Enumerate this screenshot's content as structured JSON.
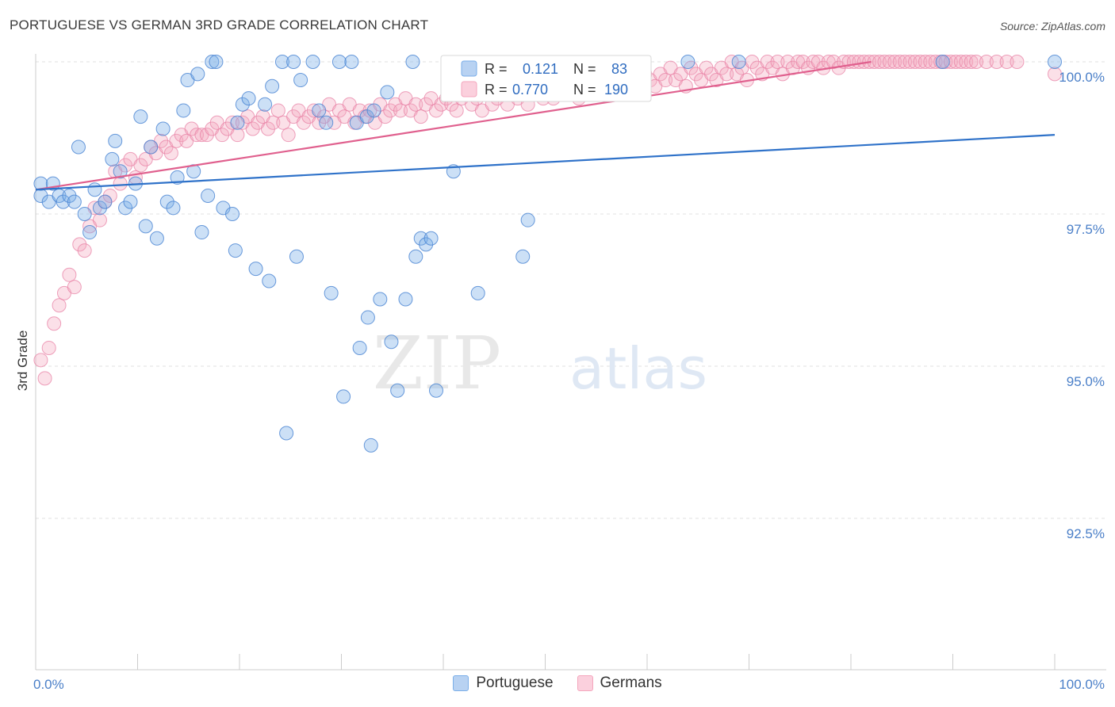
{
  "header": {
    "title": "PORTUGUESE VS GERMAN 3RD GRADE CORRELATION CHART",
    "source": "Source: ZipAtlas.com"
  },
  "watermark": {
    "zip": "ZIP",
    "atlas": "atlas"
  },
  "stats_box": {
    "rows": [
      {
        "r_label": "R =",
        "r_value": "0.121",
        "n_label": "N =",
        "n_value": "83",
        "color": "#7aaee8"
      },
      {
        "r_label": "R =",
        "r_value": "0.770",
        "n_label": "N =",
        "n_value": "190",
        "color": "#f4a6bd"
      }
    ]
  },
  "legend": {
    "items": [
      "Portuguese",
      "Germans"
    ]
  },
  "chart_data": {
    "type": "scatter",
    "title": "PORTUGUESE VS GERMAN 3RD GRADE CORRELATION CHART",
    "xlabel": "",
    "ylabel": "3rd Grade",
    "xlim": [
      0,
      100
    ],
    "ylim": [
      90.5,
      100.3
    ],
    "x_tick_labels": [
      "0.0%",
      "100.0%"
    ],
    "y_ticks": [
      92.5,
      95.0,
      97.5,
      100.0
    ],
    "y_tick_labels": [
      "92.5%",
      "95.0%",
      "97.5%",
      "100.0%"
    ],
    "grid": "horizontal dashed",
    "legend_position": "bottom-center",
    "series": [
      {
        "name": "Portuguese",
        "color": "#7aaee8",
        "line_color": "#2f72c9",
        "trend": [
          [
            0,
            97.9
          ],
          [
            100,
            98.8
          ]
        ],
        "points": [
          [
            0.5,
            97.8
          ],
          [
            0.5,
            98.0
          ],
          [
            1.3,
            97.7
          ],
          [
            1.7,
            98.0
          ],
          [
            2.3,
            97.8
          ],
          [
            2.7,
            97.7
          ],
          [
            3.3,
            97.8
          ],
          [
            3.8,
            97.7
          ],
          [
            4.2,
            98.6
          ],
          [
            4.8,
            97.5
          ],
          [
            5.3,
            97.2
          ],
          [
            5.8,
            97.9
          ],
          [
            6.3,
            97.6
          ],
          [
            6.8,
            97.7
          ],
          [
            7.5,
            98.4
          ],
          [
            7.8,
            98.7
          ],
          [
            8.3,
            98.2
          ],
          [
            8.8,
            97.6
          ],
          [
            9.3,
            97.7
          ],
          [
            9.8,
            98.0
          ],
          [
            10.3,
            99.1
          ],
          [
            10.8,
            97.3
          ],
          [
            11.3,
            98.6
          ],
          [
            11.9,
            97.1
          ],
          [
            12.5,
            98.9
          ],
          [
            12.9,
            97.7
          ],
          [
            13.5,
            97.6
          ],
          [
            13.9,
            98.1
          ],
          [
            14.5,
            99.2
          ],
          [
            14.9,
            99.7
          ],
          [
            15.5,
            98.2
          ],
          [
            15.9,
            99.8
          ],
          [
            16.3,
            97.2
          ],
          [
            16.9,
            97.8
          ],
          [
            17.3,
            100.0
          ],
          [
            17.7,
            100.0
          ],
          [
            18.4,
            97.6
          ],
          [
            19.3,
            97.5
          ],
          [
            19.6,
            96.9
          ],
          [
            19.8,
            99.0
          ],
          [
            20.3,
            99.3
          ],
          [
            20.9,
            99.4
          ],
          [
            21.6,
            96.6
          ],
          [
            22.5,
            99.3
          ],
          [
            22.9,
            96.4
          ],
          [
            23.2,
            99.6
          ],
          [
            24.2,
            100.0
          ],
          [
            25.3,
            100.0
          ],
          [
            25.6,
            96.8
          ],
          [
            26.0,
            99.7
          ],
          [
            27.2,
            100.0
          ],
          [
            27.8,
            99.2
          ],
          [
            28.5,
            99.0
          ],
          [
            29.0,
            96.2
          ],
          [
            29.8,
            100.0
          ],
          [
            31.0,
            100.0
          ],
          [
            31.5,
            99.0
          ],
          [
            31.8,
            95.3
          ],
          [
            32.5,
            99.1
          ],
          [
            32.6,
            95.8
          ],
          [
            33.2,
            99.2
          ],
          [
            33.8,
            96.1
          ],
          [
            34.5,
            99.5
          ],
          [
            34.9,
            95.4
          ],
          [
            35.5,
            94.6
          ],
          [
            36.3,
            96.1
          ],
          [
            37.0,
            100.0
          ],
          [
            37.3,
            96.8
          ],
          [
            37.8,
            97.1
          ],
          [
            38.3,
            97.0
          ],
          [
            38.8,
            97.1
          ],
          [
            39.3,
            94.6
          ],
          [
            41.0,
            98.2
          ],
          [
            43.4,
            96.2
          ],
          [
            47.8,
            96.8
          ],
          [
            48.3,
            97.4
          ],
          [
            24.6,
            93.9
          ],
          [
            32.9,
            93.7
          ],
          [
            30.2,
            94.5
          ],
          [
            64.0,
            100.0
          ],
          [
            69.0,
            100.0
          ],
          [
            89.0,
            100.0
          ],
          [
            100.0,
            100.0
          ]
        ]
      },
      {
        "name": "Germans",
        "color": "#f4a6bd",
        "line_color": "#e0608e",
        "trend": [
          [
            0,
            97.9
          ],
          [
            82,
            100.0
          ]
        ],
        "points": [
          [
            0.5,
            95.1
          ],
          [
            0.9,
            94.8
          ],
          [
            1.3,
            95.3
          ],
          [
            1.8,
            95.7
          ],
          [
            2.3,
            96.0
          ],
          [
            2.8,
            96.2
          ],
          [
            3.3,
            96.5
          ],
          [
            3.8,
            96.3
          ],
          [
            4.3,
            97.0
          ],
          [
            4.8,
            96.9
          ],
          [
            5.3,
            97.3
          ],
          [
            5.8,
            97.6
          ],
          [
            6.3,
            97.4
          ],
          [
            6.8,
            97.7
          ],
          [
            7.3,
            97.8
          ],
          [
            7.8,
            98.2
          ],
          [
            8.3,
            98.0
          ],
          [
            8.8,
            98.3
          ],
          [
            9.3,
            98.4
          ],
          [
            9.8,
            98.1
          ],
          [
            10.3,
            98.3
          ],
          [
            10.8,
            98.4
          ],
          [
            11.3,
            98.6
          ],
          [
            11.8,
            98.5
          ],
          [
            12.3,
            98.7
          ],
          [
            12.8,
            98.6
          ],
          [
            13.3,
            98.5
          ],
          [
            13.8,
            98.7
          ],
          [
            14.3,
            98.8
          ],
          [
            14.8,
            98.7
          ],
          [
            15.3,
            98.9
          ],
          [
            15.8,
            98.8
          ],
          [
            16.3,
            98.8
          ],
          [
            16.8,
            98.8
          ],
          [
            17.3,
            98.9
          ],
          [
            17.8,
            99.0
          ],
          [
            18.3,
            98.8
          ],
          [
            18.8,
            98.9
          ],
          [
            19.3,
            99.0
          ],
          [
            19.8,
            98.8
          ],
          [
            20.3,
            99.0
          ],
          [
            20.8,
            99.1
          ],
          [
            21.3,
            98.9
          ],
          [
            21.8,
            99.0
          ],
          [
            22.3,
            99.1
          ],
          [
            22.8,
            98.9
          ],
          [
            23.3,
            99.0
          ],
          [
            23.8,
            99.2
          ],
          [
            24.3,
            99.0
          ],
          [
            24.8,
            98.8
          ],
          [
            25.3,
            99.1
          ],
          [
            25.8,
            99.2
          ],
          [
            26.3,
            99.0
          ],
          [
            26.8,
            99.1
          ],
          [
            27.3,
            99.2
          ],
          [
            27.8,
            99.0
          ],
          [
            28.3,
            99.1
          ],
          [
            28.8,
            99.3
          ],
          [
            29.3,
            99.0
          ],
          [
            29.8,
            99.2
          ],
          [
            30.3,
            99.1
          ],
          [
            30.8,
            99.3
          ],
          [
            31.3,
            99.0
          ],
          [
            31.8,
            99.2
          ],
          [
            32.3,
            99.1
          ],
          [
            32.8,
            99.2
          ],
          [
            33.3,
            99.0
          ],
          [
            33.8,
            99.3
          ],
          [
            34.3,
            99.1
          ],
          [
            34.8,
            99.2
          ],
          [
            35.3,
            99.3
          ],
          [
            35.8,
            99.2
          ],
          [
            36.3,
            99.4
          ],
          [
            36.8,
            99.2
          ],
          [
            37.3,
            99.3
          ],
          [
            37.8,
            99.1
          ],
          [
            38.3,
            99.3
          ],
          [
            38.8,
            99.4
          ],
          [
            39.3,
            99.2
          ],
          [
            39.8,
            99.3
          ],
          [
            40.3,
            99.4
          ],
          [
            40.8,
            99.3
          ],
          [
            41.3,
            99.2
          ],
          [
            41.8,
            99.4
          ],
          [
            42.3,
            99.5
          ],
          [
            42.8,
            99.3
          ],
          [
            43.3,
            99.4
          ],
          [
            43.8,
            99.2
          ],
          [
            44.3,
            99.5
          ],
          [
            44.8,
            99.3
          ],
          [
            45.3,
            99.4
          ],
          [
            45.8,
            99.5
          ],
          [
            46.3,
            99.3
          ],
          [
            46.8,
            99.6
          ],
          [
            47.3,
            99.4
          ],
          [
            47.8,
            99.5
          ],
          [
            48.3,
            99.3
          ],
          [
            48.8,
            99.6
          ],
          [
            49.3,
            99.5
          ],
          [
            49.8,
            99.4
          ],
          [
            50.3,
            99.6
          ],
          [
            50.8,
            99.4
          ],
          [
            51.3,
            99.5
          ],
          [
            51.8,
            99.7
          ],
          [
            52.3,
            99.5
          ],
          [
            52.8,
            99.6
          ],
          [
            53.3,
            99.4
          ],
          [
            53.8,
            99.7
          ],
          [
            54.3,
            99.6
          ],
          [
            54.8,
            99.5
          ],
          [
            55.3,
            99.7
          ],
          [
            55.8,
            99.6
          ],
          [
            56.3,
            99.5
          ],
          [
            56.8,
            99.7
          ],
          [
            57.3,
            99.6
          ],
          [
            57.8,
            99.8
          ],
          [
            58.3,
            99.6
          ],
          [
            58.8,
            99.7
          ],
          [
            59.3,
            99.5
          ],
          [
            59.8,
            99.8
          ],
          [
            60.3,
            99.7
          ],
          [
            60.8,
            99.6
          ],
          [
            61.3,
            99.8
          ],
          [
            61.8,
            99.7
          ],
          [
            62.3,
            99.9
          ],
          [
            62.8,
            99.7
          ],
          [
            63.3,
            99.8
          ],
          [
            63.8,
            99.6
          ],
          [
            64.3,
            99.9
          ],
          [
            64.8,
            99.8
          ],
          [
            65.3,
            99.7
          ],
          [
            65.8,
            99.9
          ],
          [
            66.3,
            99.8
          ],
          [
            66.8,
            99.7
          ],
          [
            67.3,
            99.9
          ],
          [
            67.8,
            99.8
          ],
          [
            68.3,
            100.0
          ],
          [
            68.8,
            99.8
          ],
          [
            69.3,
            99.9
          ],
          [
            69.8,
            99.7
          ],
          [
            70.3,
            100.0
          ],
          [
            70.8,
            99.9
          ],
          [
            71.3,
            99.8
          ],
          [
            71.8,
            100.0
          ],
          [
            72.3,
            99.9
          ],
          [
            72.8,
            100.0
          ],
          [
            73.3,
            99.8
          ],
          [
            73.8,
            100.0
          ],
          [
            74.3,
            99.9
          ],
          [
            74.8,
            100.0
          ],
          [
            75.3,
            100.0
          ],
          [
            75.8,
            99.9
          ],
          [
            76.3,
            100.0
          ],
          [
            76.8,
            100.0
          ],
          [
            77.3,
            99.9
          ],
          [
            77.8,
            100.0
          ],
          [
            78.3,
            100.0
          ],
          [
            78.8,
            99.9
          ],
          [
            79.3,
            100.0
          ],
          [
            79.8,
            100.0
          ],
          [
            80.3,
            100.0
          ],
          [
            80.8,
            100.0
          ],
          [
            81.3,
            100.0
          ],
          [
            81.8,
            100.0
          ],
          [
            82.3,
            100.0
          ],
          [
            82.8,
            100.0
          ],
          [
            83.3,
            100.0
          ],
          [
            83.8,
            100.0
          ],
          [
            84.3,
            100.0
          ],
          [
            84.8,
            100.0
          ],
          [
            85.3,
            100.0
          ],
          [
            85.8,
            100.0
          ],
          [
            86.3,
            100.0
          ],
          [
            86.8,
            100.0
          ],
          [
            87.3,
            100.0
          ],
          [
            87.8,
            100.0
          ],
          [
            88.3,
            100.0
          ],
          [
            88.8,
            100.0
          ],
          [
            89.3,
            100.0
          ],
          [
            89.8,
            100.0
          ],
          [
            90.3,
            100.0
          ],
          [
            90.8,
            100.0
          ],
          [
            91.3,
            100.0
          ],
          [
            91.8,
            100.0
          ],
          [
            92.3,
            100.0
          ],
          [
            93.3,
            100.0
          ],
          [
            94.3,
            100.0
          ],
          [
            95.3,
            100.0
          ],
          [
            96.3,
            100.0
          ],
          [
            100.0,
            99.8
          ]
        ]
      }
    ]
  }
}
